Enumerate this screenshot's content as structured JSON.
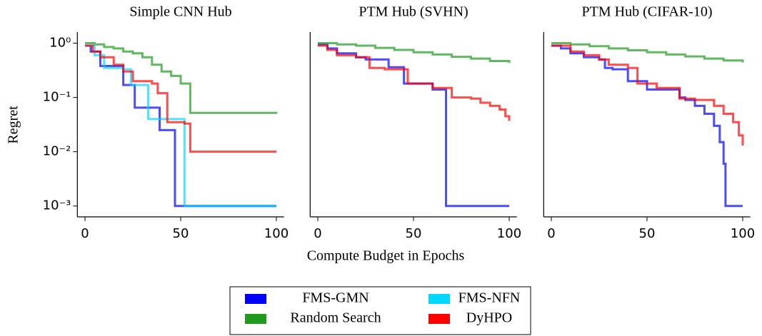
{
  "chart_data": [
    {
      "type": "line",
      "step": "post",
      "title": "Simple CNN Hub",
      "xlabel": "Compute Budget in Epochs",
      "ylabel": "Regret",
      "log_y": true,
      "xlim": [
        -4,
        104
      ],
      "ylim": [
        0.00063,
        1.6
      ],
      "xticks": [
        0,
        50,
        100
      ],
      "yticks": [
        {
          "value": 1,
          "label": "10⁰"
        },
        {
          "value": 0.1,
          "label": "10⁻¹"
        },
        {
          "value": 0.01,
          "label": "10⁻²"
        },
        {
          "value": 0.001,
          "label": "10⁻³"
        }
      ],
      "legend": "lower center",
      "series": [
        {
          "name": "FMS-GMN",
          "color": "#0000ff",
          "x": [
            0,
            3,
            8,
            14,
            20,
            26,
            39,
            47,
            100
          ],
          "values": [
            0.9,
            0.7,
            0.38,
            0.38,
            0.17,
            0.065,
            0.025,
            0.001,
            0.001
          ]
        },
        {
          "name": "Random Search",
          "color": "#1f9a1f",
          "x": [
            0,
            5,
            10,
            15,
            20,
            25,
            30,
            35,
            40,
            45,
            50,
            55,
            100
          ],
          "values": [
            1,
            0.95,
            0.85,
            0.8,
            0.7,
            0.65,
            0.55,
            0.4,
            0.3,
            0.25,
            0.18,
            0.052,
            0.05
          ]
        },
        {
          "name": "FMS-NFN",
          "color": "#00d8ff",
          "x": [
            0,
            5,
            10,
            20,
            24,
            33,
            38,
            52,
            100
          ],
          "values": [
            0.9,
            0.6,
            0.35,
            0.33,
            0.17,
            0.04,
            0.04,
            0.001,
            0.001
          ]
        },
        {
          "name": "DyHPO",
          "color": "#ff0000",
          "x": [
            0,
            4,
            8,
            15,
            20,
            25,
            35,
            38,
            43,
            52,
            55,
            100
          ],
          "values": [
            0.9,
            0.7,
            0.55,
            0.4,
            0.3,
            0.2,
            0.18,
            0.12,
            0.035,
            0.033,
            0.01,
            0.01
          ]
        }
      ]
    },
    {
      "type": "line",
      "step": "post",
      "title": "PTM Hub (SVHN)",
      "log_y": true,
      "xlim": [
        -4,
        104
      ],
      "ylim": [
        0.00063,
        1.6
      ],
      "xticks": [
        0,
        50,
        100
      ],
      "series": [
        {
          "name": "FMS-GMN",
          "color": "#0000ff",
          "x": [
            0,
            5,
            10,
            20,
            25,
            37,
            45,
            60,
            67,
            100
          ],
          "values": [
            0.95,
            0.8,
            0.65,
            0.55,
            0.5,
            0.36,
            0.18,
            0.14,
            0.001,
            0.001
          ]
        },
        {
          "name": "Random Search",
          "color": "#1f9a1f",
          "x": [
            0,
            10,
            20,
            30,
            40,
            50,
            60,
            70,
            80,
            90,
            100
          ],
          "values": [
            1,
            0.95,
            0.9,
            0.82,
            0.75,
            0.68,
            0.62,
            0.56,
            0.52,
            0.47,
            0.43
          ]
        },
        {
          "name": "DyHPO",
          "color": "#ff0000",
          "x": [
            0,
            5,
            10,
            20,
            27,
            35,
            47,
            60,
            70,
            80,
            85,
            90,
            95,
            98,
            100
          ],
          "values": [
            0.9,
            0.75,
            0.6,
            0.55,
            0.35,
            0.33,
            0.18,
            0.15,
            0.1,
            0.095,
            0.08,
            0.07,
            0.06,
            0.045,
            0.037
          ]
        }
      ]
    },
    {
      "type": "line",
      "step": "post",
      "title": "PTM Hub (CIFAR-10)",
      "log_y": true,
      "xlim": [
        -4,
        104
      ],
      "ylim": [
        0.00063,
        1.6
      ],
      "xticks": [
        0,
        50,
        100
      ],
      "series": [
        {
          "name": "FMS-GMN",
          "color": "#0000ff",
          "x": [
            0,
            5,
            10,
            17,
            25,
            28,
            32,
            40,
            50,
            67,
            70,
            75,
            80,
            85,
            88,
            90,
            91,
            100
          ],
          "values": [
            0.9,
            0.8,
            0.65,
            0.55,
            0.5,
            0.35,
            0.33,
            0.2,
            0.14,
            0.1,
            0.09,
            0.07,
            0.05,
            0.03,
            0.015,
            0.006,
            0.001,
            0.001
          ]
        },
        {
          "name": "Random Search",
          "color": "#1f9a1f",
          "x": [
            0,
            10,
            20,
            30,
            40,
            50,
            60,
            70,
            80,
            90,
            100
          ],
          "values": [
            1,
            0.95,
            0.88,
            0.8,
            0.74,
            0.68,
            0.62,
            0.57,
            0.52,
            0.48,
            0.44
          ]
        },
        {
          "name": "DyHPO",
          "color": "#ff0000",
          "x": [
            0,
            10,
            17,
            25,
            30,
            40,
            45,
            55,
            67,
            75,
            80,
            85,
            90,
            95,
            98,
            100
          ],
          "values": [
            0.9,
            0.7,
            0.6,
            0.5,
            0.4,
            0.35,
            0.18,
            0.15,
            0.095,
            0.09,
            0.09,
            0.07,
            0.05,
            0.035,
            0.02,
            0.013
          ]
        }
      ]
    }
  ]
}
